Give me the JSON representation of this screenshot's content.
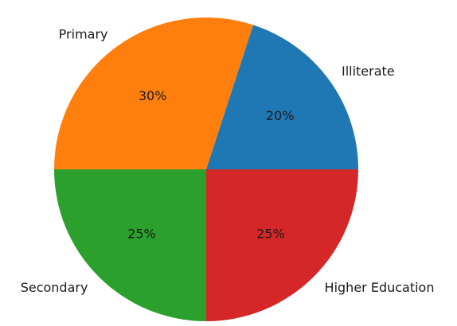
{
  "chart_data": {
    "type": "pie",
    "categories": [
      "Illiterate",
      "Primary",
      "Secondary",
      "Higher Education"
    ],
    "values": [
      20,
      30,
      25,
      25
    ],
    "percent_labels": [
      "20%",
      "30%",
      "25%",
      "25%"
    ],
    "colors": [
      "#1f77b4",
      "#ff7f0e",
      "#2ca02c",
      "#d62728"
    ],
    "start_angle_deg": 0,
    "direction": "counterclockwise",
    "legend": "none"
  }
}
